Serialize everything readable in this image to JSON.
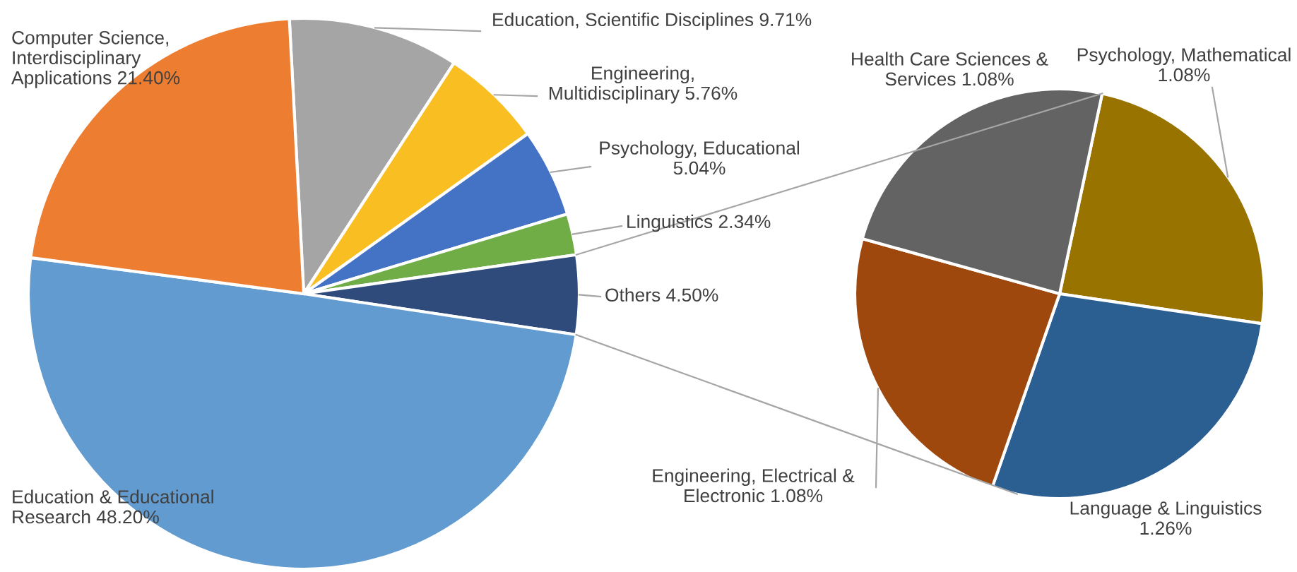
{
  "chart_data": [
    {
      "type": "pie",
      "categories": [
        "Education, Scientific Disciplines",
        "Engineering, Multidisciplinary",
        "Psychology, Educational",
        "Linguistics",
        "Others",
        "Education & Educational Research",
        "Computer Science, Interdisciplinary Applications"
      ],
      "values": [
        9.71,
        5.76,
        5.04,
        2.34,
        4.5,
        48.2,
        21.4
      ],
      "value_labels": [
        "9.71%",
        "5.76%",
        "5.04%",
        "2.34%",
        "4.50%",
        "48.20%",
        "21.40%"
      ],
      "colors": [
        "#a5a5a5",
        "#f9bf22",
        "#4472c4",
        "#70ad47",
        "#2f4b7c",
        "#629bcf",
        "#ed7d31"
      ]
    },
    {
      "type": "pie",
      "categories": [
        "Psychology, Mathematical",
        "Language & Linguistics",
        "Engineering, Electrical & Electronic",
        "Health Care Sciences & Services"
      ],
      "values": [
        1.08,
        1.26,
        1.08,
        1.08
      ],
      "value_labels": [
        "1.08%",
        "1.26%",
        "1.08%",
        "1.08%"
      ],
      "colors": [
        "#997300",
        "#2b5f92",
        "#9e480e",
        "#636363"
      ]
    }
  ]
}
